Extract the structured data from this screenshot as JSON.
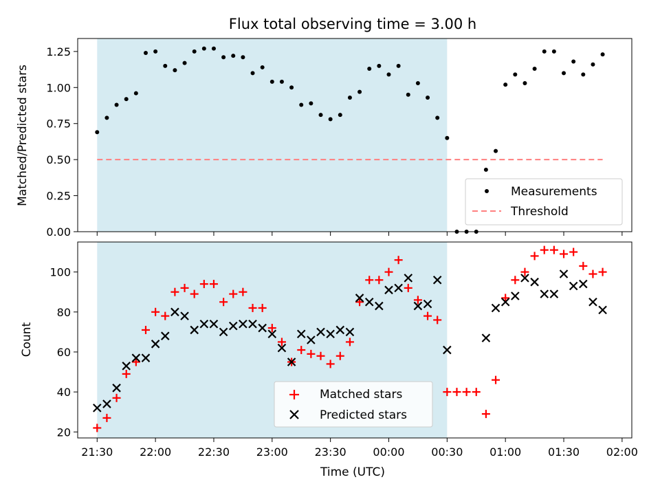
{
  "chart_data": [
    {
      "type": "scatter",
      "title": "Flux total observing time = 3.00 h",
      "xlabel": "",
      "ylabel": "Matched/Predicted stars",
      "ylim": [
        0,
        1.34
      ],
      "yticks": [
        "0.00",
        "0.25",
        "0.50",
        "0.75",
        "1.00",
        "1.25"
      ],
      "ytick_values": [
        0,
        0.25,
        0.5,
        0.75,
        1.0,
        1.25
      ],
      "shaded_region": {
        "from": "21:30",
        "to": "00:30",
        "color": "#add8e6"
      },
      "legend_position": "lower-right",
      "series": [
        {
          "name": "Measurements",
          "marker": "dot",
          "color": "#000000",
          "x": [
            "21:30",
            "21:35",
            "21:40",
            "21:45",
            "21:50",
            "21:55",
            "22:00",
            "22:05",
            "22:10",
            "22:15",
            "22:20",
            "22:25",
            "22:30",
            "22:35",
            "22:40",
            "22:45",
            "22:50",
            "22:55",
            "23:00",
            "23:05",
            "23:10",
            "23:15",
            "23:20",
            "23:25",
            "23:30",
            "23:35",
            "23:40",
            "23:45",
            "23:50",
            "23:55",
            "00:00",
            "00:05",
            "00:10",
            "00:15",
            "00:20",
            "00:25",
            "00:30",
            "00:35",
            "00:40",
            "00:45",
            "00:50",
            "00:55",
            "01:00",
            "01:05",
            "01:10",
            "01:15",
            "01:20",
            "01:25",
            "01:30",
            "01:35",
            "01:40",
            "01:45",
            "01:50"
          ],
          "y": [
            0.69,
            0.79,
            0.88,
            0.92,
            0.96,
            1.24,
            1.25,
            1.15,
            1.12,
            1.17,
            1.25,
            1.27,
            1.27,
            1.21,
            1.22,
            1.21,
            1.1,
            1.14,
            1.04,
            1.04,
            1.0,
            0.88,
            0.89,
            0.81,
            0.78,
            0.81,
            0.93,
            0.97,
            1.13,
            1.15,
            1.09,
            1.15,
            0.95,
            1.03,
            0.93,
            0.79,
            0.65,
            0.0,
            0.0,
            0.0,
            0.43,
            0.56,
            1.02,
            1.09,
            1.03,
            1.13,
            1.25,
            1.25,
            1.1,
            1.18,
            1.09,
            1.16,
            1.23
          ]
        },
        {
          "name": "Threshold",
          "marker": "dashed-line",
          "color": "#ff7f7f",
          "x": [
            "21:30",
            "01:50"
          ],
          "y": [
            0.5,
            0.5
          ]
        }
      ]
    },
    {
      "type": "scatter",
      "title": "",
      "xlabel": "Time (UTC)",
      "ylabel": "Count",
      "ylim": [
        17,
        115
      ],
      "yticks": [
        "20",
        "40",
        "60",
        "80",
        "100"
      ],
      "ytick_values": [
        20,
        40,
        60,
        80,
        100
      ],
      "xticks": [
        "21:30",
        "22:00",
        "22:30",
        "23:00",
        "23:30",
        "00:00",
        "00:30",
        "01:00",
        "01:30",
        "02:00"
      ],
      "xlim": [
        "21:20",
        "02:05"
      ],
      "shaded_region": {
        "from": "21:30",
        "to": "00:30",
        "color": "#add8e6"
      },
      "legend_position": "lower-center",
      "series": [
        {
          "name": "Matched stars",
          "marker": "plus",
          "color": "#ff0000",
          "x": [
            "21:30",
            "21:35",
            "21:40",
            "21:45",
            "21:50",
            "21:55",
            "22:00",
            "22:05",
            "22:10",
            "22:15",
            "22:20",
            "22:25",
            "22:30",
            "22:35",
            "22:40",
            "22:45",
            "22:50",
            "22:55",
            "23:00",
            "23:05",
            "23:10",
            "23:15",
            "23:20",
            "23:25",
            "23:30",
            "23:35",
            "23:40",
            "23:45",
            "23:50",
            "23:55",
            "00:00",
            "00:05",
            "00:10",
            "00:15",
            "00:20",
            "00:25",
            "00:30",
            "00:35",
            "00:40",
            "00:45",
            "00:50",
            "00:55",
            "01:00",
            "01:05",
            "01:10",
            "01:15",
            "01:20",
            "01:25",
            "01:30",
            "01:35",
            "01:40",
            "01:45",
            "01:50"
          ],
          "y": [
            22,
            27,
            37,
            49,
            55,
            71,
            80,
            78,
            90,
            92,
            89,
            94,
            94,
            85,
            89,
            90,
            82,
            82,
            72,
            65,
            55,
            61,
            59,
            58,
            54,
            58,
            65,
            85,
            96,
            96,
            100,
            106,
            92,
            86,
            78,
            76,
            40,
            40,
            40,
            40,
            29,
            46,
            87,
            96,
            100,
            108,
            111,
            111,
            109,
            110,
            103,
            99,
            100
          ]
        },
        {
          "name": "Predicted stars",
          "marker": "x",
          "color": "#000000",
          "x": [
            "21:30",
            "21:35",
            "21:40",
            "21:45",
            "21:50",
            "21:55",
            "22:00",
            "22:05",
            "22:10",
            "22:15",
            "22:20",
            "22:25",
            "22:30",
            "22:35",
            "22:40",
            "22:45",
            "22:50",
            "22:55",
            "23:00",
            "23:05",
            "23:10",
            "23:15",
            "23:20",
            "23:25",
            "23:30",
            "23:35",
            "23:40",
            "23:45",
            "23:50",
            "23:55",
            "00:00",
            "00:05",
            "00:10",
            "00:15",
            "00:20",
            "00:25",
            "00:30",
            "00:50",
            "00:55",
            "01:00",
            "01:05",
            "01:10",
            "01:15",
            "01:20",
            "01:25",
            "01:30",
            "01:35",
            "01:40",
            "01:45",
            "01:50"
          ],
          "y": [
            32,
            34,
            42,
            53,
            57,
            57,
            64,
            68,
            80,
            78,
            71,
            74,
            74,
            70,
            73,
            74,
            74,
            72,
            69,
            62,
            55,
            69,
            66,
            70,
            69,
            71,
            70,
            87,
            85,
            83,
            91,
            92,
            97,
            83,
            84,
            96,
            61,
            67,
            82,
            85,
            88,
            97,
            95,
            89,
            89,
            99,
            93,
            94,
            85,
            81
          ]
        }
      ]
    }
  ]
}
